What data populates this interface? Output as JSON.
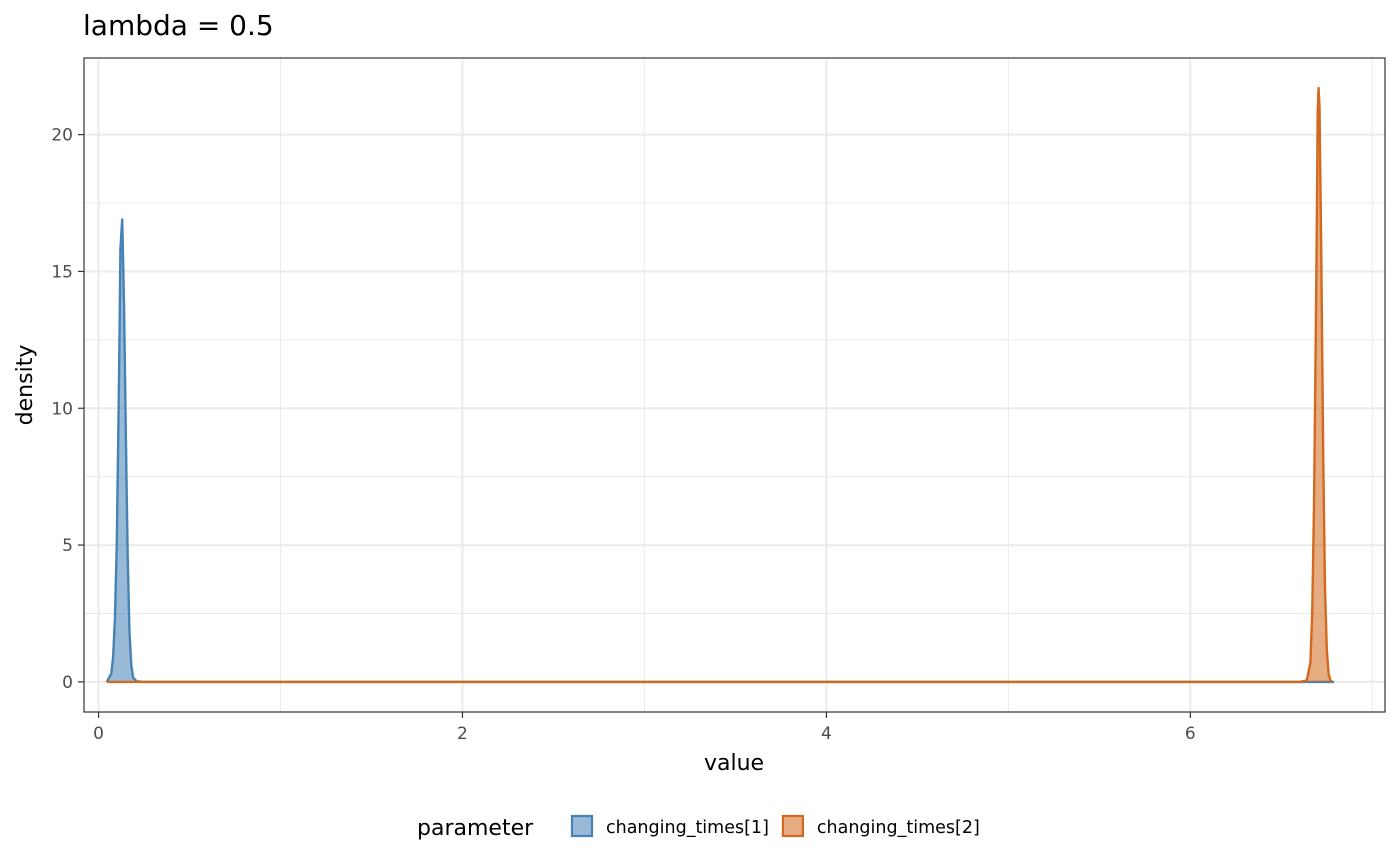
{
  "chart_data": {
    "type": "area",
    "title": "lambda = 0.5",
    "xlabel": "value",
    "ylabel": "density",
    "xlim": [
      -0.08,
      7.07
    ],
    "ylim": [
      -1.1,
      22.8
    ],
    "x_ticks": [
      0,
      2,
      4,
      6
    ],
    "x_tick_labels": [
      "0",
      "2",
      "4",
      "6"
    ],
    "y_ticks": [
      0,
      5,
      10,
      15,
      20
    ],
    "y_tick_labels": [
      "0",
      "5",
      "10",
      "15",
      "20"
    ],
    "grid": true,
    "legend": {
      "title": "parameter",
      "position": "bottom"
    },
    "series": [
      {
        "name": "changing_times[1]",
        "line_color": "#4682b4",
        "fill_color": "#4682b4",
        "x": [
          0.045,
          0.07,
          0.08,
          0.09,
          0.1,
          0.11,
          0.115,
          0.12,
          0.13,
          0.14,
          0.15,
          0.16,
          0.17,
          0.18,
          0.19,
          0.21,
          0.25,
          0.3,
          6.79
        ],
        "y": [
          0,
          0.3,
          0.9,
          2.3,
          5.0,
          9.8,
          12.5,
          15.8,
          16.9,
          13.8,
          9.0,
          4.6,
          1.8,
          0.6,
          0.15,
          0.02,
          0,
          0,
          0
        ]
      },
      {
        "name": "changing_times[2]",
        "line_color": "#d2691e",
        "fill_color": "#d2691e",
        "x": [
          0.045,
          6.6,
          6.64,
          6.66,
          6.67,
          6.68,
          6.69,
          6.695,
          6.7,
          6.705,
          6.71,
          6.72,
          6.73,
          6.74,
          6.75,
          6.76,
          6.77,
          6.78
        ],
        "y": [
          0,
          0,
          0.05,
          0.7,
          2.5,
          6.5,
          13.0,
          16.5,
          20.8,
          21.7,
          21.0,
          15.5,
          8.5,
          3.5,
          1.2,
          0.3,
          0.05,
          0
        ]
      }
    ]
  }
}
